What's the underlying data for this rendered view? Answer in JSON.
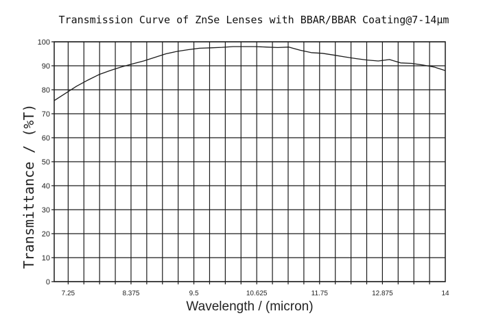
{
  "chart_data": {
    "type": "line",
    "title": "Transmission Curve of ZnSe Lenses with BBAR/BBAR Coating@7-14μm",
    "xlabel": "Wavelength / (micron)",
    "ylabel": "Transmittance / (%T)",
    "xlim": [
      7,
      14
    ],
    "ylim": [
      0,
      100
    ],
    "xticks": [
      7.25,
      8.375,
      9.5,
      10.625,
      11.75,
      12.875,
      14
    ],
    "xtick_labels": [
      "7.25",
      "8.375",
      "9.5",
      "10.625",
      "11.75",
      "12.875",
      "14"
    ],
    "yticks": [
      0,
      10,
      20,
      30,
      40,
      50,
      60,
      70,
      80,
      90,
      100
    ],
    "ytick_labels": [
      "0",
      "10",
      "20",
      "30",
      "40",
      "50",
      "60",
      "70",
      "80",
      "90",
      "100"
    ],
    "grid": true,
    "series": [
      {
        "x": [
          7.0,
          7.2,
          7.4,
          7.6,
          7.8,
          8.0,
          8.2,
          8.4,
          8.6,
          8.8,
          9.0,
          9.2,
          9.4,
          9.6,
          9.8,
          10.0,
          10.2,
          10.4,
          10.6,
          10.8,
          11.0,
          11.2,
          11.4,
          11.6,
          11.8,
          12.0,
          12.2,
          12.4,
          12.6,
          12.8,
          13.0,
          13.2,
          13.4,
          13.6,
          13.8,
          14.0
        ],
        "y": [
          75.5,
          78.5,
          81.5,
          84.0,
          86.3,
          88.0,
          89.5,
          90.8,
          92.0,
          93.5,
          95.0,
          96.0,
          96.7,
          97.3,
          97.5,
          97.7,
          98.0,
          98.0,
          98.0,
          97.8,
          97.6,
          97.8,
          96.5,
          95.5,
          95.2,
          94.5,
          93.7,
          93.0,
          92.4,
          92.0,
          92.6,
          91.2,
          91.0,
          90.3,
          89.5,
          88.0
        ]
      }
    ],
    "colors": {
      "line": "#1a1a1a",
      "grid": "#1a1a1a",
      "background": "#ffffff"
    }
  }
}
